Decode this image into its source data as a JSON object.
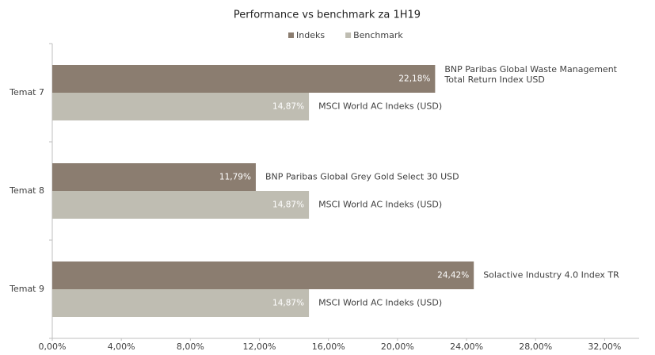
{
  "chart_data": {
    "type": "hbar",
    "title": "Performance vs benchmark za 1H19",
    "categories": [
      "Temat 7",
      "Temat 8",
      "Temat 9"
    ],
    "series": [
      {
        "name": "Indeks",
        "color": "#8b7d70",
        "values": [
          22.18,
          11.79,
          24.42
        ],
        "value_labels": [
          "22,18%",
          "11,79%",
          "24,42%"
        ],
        "labels": [
          [
            "BNP Paribas Global Waste Management",
            "Total Return Index USD"
          ],
          [
            "BNP Paribas Global Grey Gold Select 30 USD"
          ],
          [
            "Solactive Industry 4.0 Index TR"
          ]
        ]
      },
      {
        "name": "Benchmark",
        "color": "#bfbdb2",
        "values": [
          14.87,
          14.87,
          14.87
        ],
        "value_labels": [
          "14,87%",
          "14,87%",
          "14,87%"
        ],
        "labels": [
          [
            "MSCI World AC Indeks (USD)"
          ],
          [
            "MSCI World AC Indeks (USD)"
          ],
          [
            "MSCI World AC Indeks (USD)"
          ]
        ]
      }
    ],
    "xlim": [
      0,
      34
    ],
    "xticks": [
      {
        "value": 0,
        "label": "0,00%"
      },
      {
        "value": 4,
        "label": "4,00%"
      },
      {
        "value": 8,
        "label": "8,00%"
      },
      {
        "value": 12,
        "label": "12,00%"
      },
      {
        "value": 16,
        "label": "16,00%"
      },
      {
        "value": 20,
        "label": "20,00%"
      },
      {
        "value": 24,
        "label": "24,00%"
      },
      {
        "value": 28,
        "label": "28,00%"
      },
      {
        "value": 32,
        "label": "32,00%"
      }
    ],
    "legend": "top"
  }
}
